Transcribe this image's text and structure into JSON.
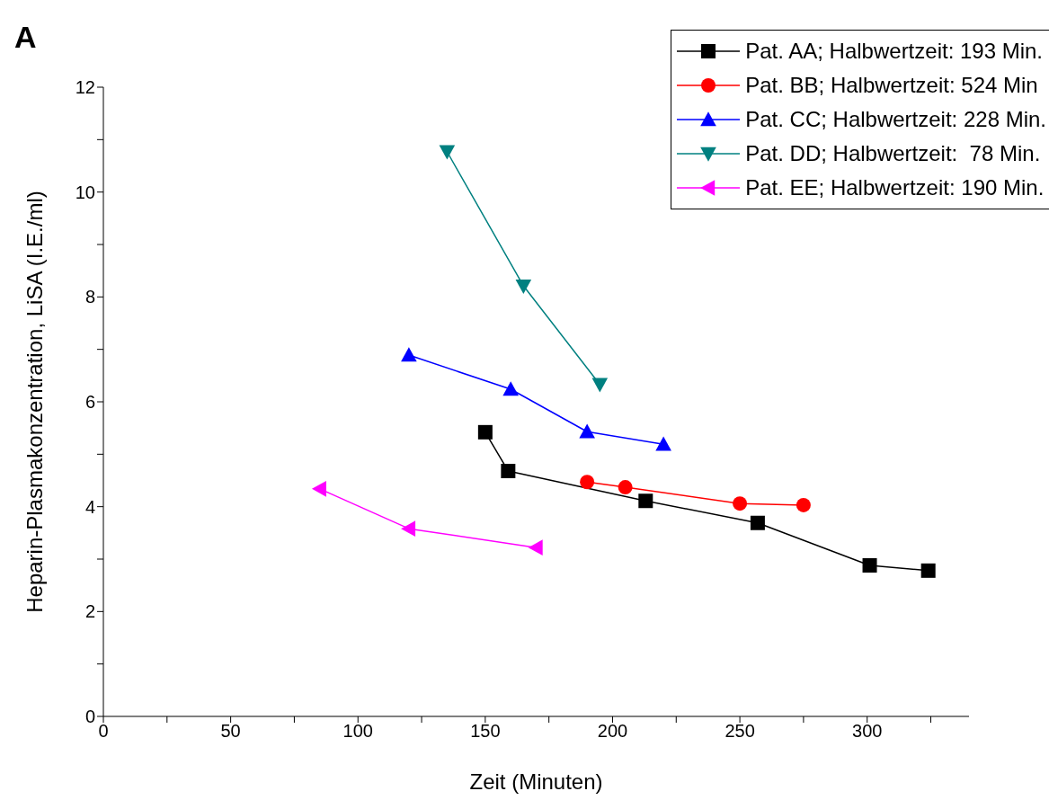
{
  "chart_data": {
    "type": "line",
    "annotations": [
      "A"
    ],
    "xlabel": "Zeit (Minuten)",
    "ylabel": "Heparin-Plasmakonzentration, LiSA (I.E./ml)",
    "xlim": [
      0,
      340
    ],
    "xticks": [
      0,
      {
        "value": 25,
        "label": null
      },
      50,
      {
        "value": 75,
        "label": null
      },
      100,
      {
        "value": 125,
        "label": null
      },
      150,
      {
        "value": 175,
        "label": null
      },
      200,
      {
        "value": 225,
        "label": null
      },
      250,
      {
        "value": 275,
        "label": null
      },
      300,
      {
        "value": 325,
        "label": null
      }
    ],
    "ylim": [
      0,
      12
    ],
    "yticks": [
      0,
      {
        "value": 1,
        "label": null
      },
      2,
      {
        "value": 3,
        "label": null
      },
      4,
      {
        "value": 5,
        "label": null
      },
      6,
      {
        "value": 7,
        "label": null
      },
      8,
      {
        "value": 9,
        "label": null
      },
      10,
      {
        "value": 11,
        "label": null
      },
      12
    ],
    "grid": false,
    "legend": "top right",
    "line_style": "solid",
    "series": [
      {
        "name": "Pat. AA; Halbwertzeit: 193 Min.",
        "color": "#000000",
        "marker": "square",
        "x": [
          150,
          159,
          213,
          257,
          301,
          324
        ],
        "values": [
          5.42,
          4.68,
          4.11,
          3.69,
          2.88,
          2.78
        ]
      },
      {
        "name": "Pat. BB; Halbwertzeit: 524 Min",
        "color": "#ff0000",
        "marker": "circle",
        "x": [
          190,
          205,
          250,
          275
        ],
        "values": [
          4.47,
          4.37,
          4.06,
          4.03
        ]
      },
      {
        "name": "Pat. CC; Halbwertzeit: 228 Min.",
        "color": "#0000ff",
        "marker": "triangle",
        "x": [
          120,
          160,
          190,
          220
        ],
        "values": [
          6.89,
          6.24,
          5.43,
          5.19
        ]
      },
      {
        "name": "Pat. DD; Halbwertzeit:  78 Min.",
        "color": "#008080",
        "marker": "triangle-down",
        "x": [
          135,
          165,
          195
        ],
        "values": [
          10.77,
          8.21,
          6.33
        ]
      },
      {
        "name": "Pat. EE; Halbwertzeit: 190 Min.",
        "color": "#ff00ff",
        "marker": "triangle-left",
        "x": [
          85,
          120,
          170
        ],
        "values": [
          4.34,
          3.58,
          3.22
        ]
      }
    ]
  }
}
